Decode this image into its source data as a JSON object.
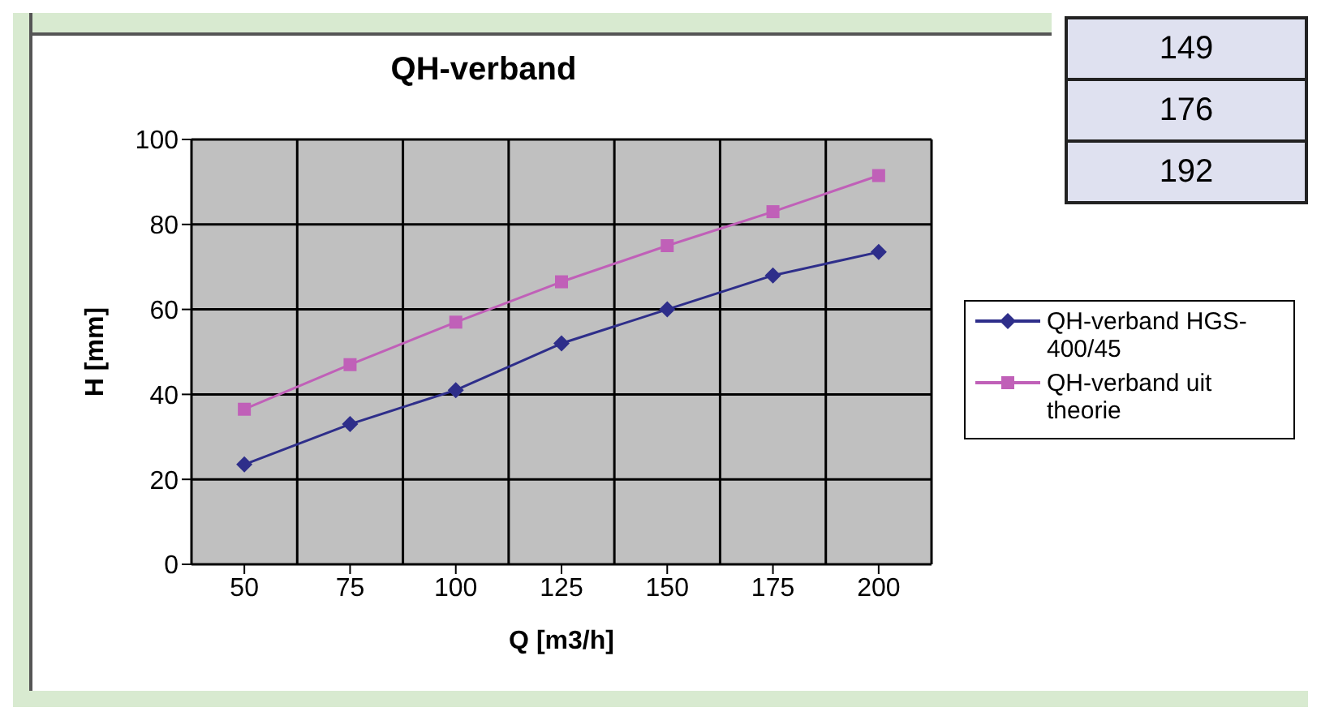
{
  "chart_data": {
    "type": "line",
    "title": "QH-verband",
    "xlabel": "Q [m3/h]",
    "ylabel": "H [mm]",
    "categories": [
      "50",
      "75",
      "100",
      "125",
      "150",
      "175",
      "200"
    ],
    "series": [
      {
        "name": "QH-verband HGS-400/45",
        "color": "#2e2e8a",
        "marker": "diamond",
        "values": [
          23.5,
          33,
          41,
          52,
          60,
          68,
          73.5
        ]
      },
      {
        "name": "QH-verband uit theorie",
        "color": "#c060b8",
        "marker": "square",
        "values": [
          36.5,
          47,
          57,
          66.5,
          75,
          83,
          91.5
        ]
      }
    ],
    "ylim": [
      0,
      100
    ],
    "yticks": [
      0,
      20,
      40,
      60,
      80,
      100
    ],
    "grid": true,
    "legend": "right",
    "annotations": [
      "149",
      "176",
      "192"
    ]
  }
}
